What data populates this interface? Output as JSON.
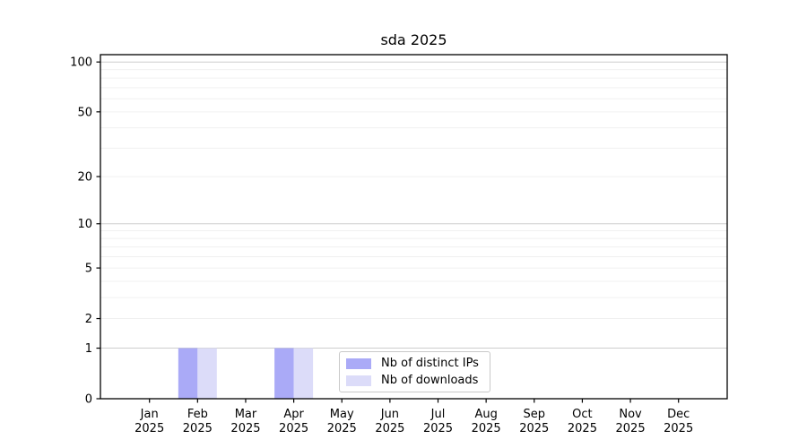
{
  "chart_data": {
    "type": "bar",
    "title": "sda 2025",
    "categories": [
      "Jan 2025",
      "Feb 2025",
      "Mar 2025",
      "Apr 2025",
      "May 2025",
      "Jun 2025",
      "Jul 2025",
      "Aug 2025",
      "Sep 2025",
      "Oct 2025",
      "Nov 2025",
      "Dec 2025"
    ],
    "series": [
      {
        "name": "Nb of distinct IPs",
        "color": "#aaaaf7",
        "values": [
          0,
          1,
          0,
          1,
          0,
          0,
          0,
          0,
          0,
          0,
          0,
          0
        ]
      },
      {
        "name": "Nb of downloads",
        "color": "#dcdcf9",
        "values": [
          0,
          1,
          0,
          1,
          0,
          0,
          0,
          0,
          0,
          0,
          0,
          0
        ]
      }
    ],
    "xlabel": "",
    "ylabel": "",
    "y_scale": "log10(1+y)",
    "y_ticks": [
      0,
      1,
      2,
      5,
      10,
      20,
      50,
      100
    ],
    "y_major_gridlines": [
      1,
      10,
      100
    ],
    "y_minor_gridlines": [
      2,
      3,
      4,
      5,
      6,
      7,
      8,
      9,
      20,
      30,
      40,
      50,
      60,
      70,
      80,
      90
    ],
    "ylim": [
      0,
      110
    ],
    "grid": "horizontal",
    "legend_position": "lower center, inside plot",
    "colors": {
      "major_grid": "#cdcdcd",
      "minor_grid": "#f0f0f0",
      "axis": "#000000"
    }
  }
}
